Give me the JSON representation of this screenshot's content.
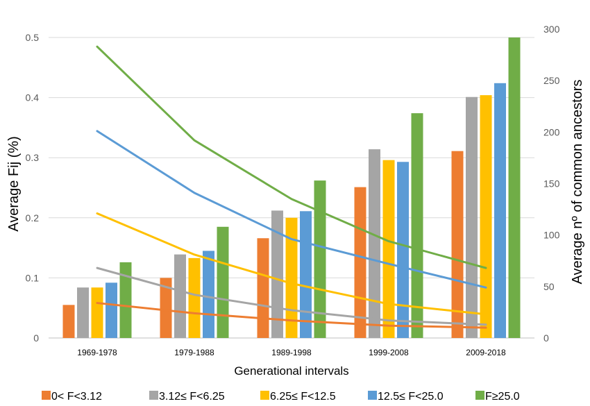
{
  "chart_data": {
    "type": "bar",
    "categories": [
      "1969-1978",
      "1979-1988",
      "1989-1998",
      "1999-2008",
      "2009-2018"
    ],
    "xlabel": "Generational intervals",
    "ylabel": "Average Fij (%)",
    "y2label": "Average nº of common ancestors",
    "ylim": [
      0,
      0.5
    ],
    "yticks": [
      "0",
      "0.1",
      "0.2",
      "0.3",
      "0.4",
      "0.5"
    ],
    "y2lim": [
      0,
      300
    ],
    "y2ticks": [
      "0",
      "50",
      "100",
      "150",
      "200",
      "250",
      "300"
    ],
    "grid": true,
    "legend_position": "bottom",
    "series": [
      {
        "name": "0< F<3.12",
        "color": "#ED7D31",
        "values": [
          0.055,
          0.1,
          0.166,
          0.251,
          0.311
        ],
        "line_values": [
          34,
          24,
          17,
          12,
          10
        ]
      },
      {
        "name": "3.12≤ F<6.25",
        "color": "#A5A5A5",
        "values": [
          0.084,
          0.139,
          0.212,
          0.314,
          0.401
        ],
        "line_values": [
          68,
          42,
          27,
          17,
          13
        ]
      },
      {
        "name": "6.25≤ F<12.5",
        "color": "#FFC000",
        "values": [
          0.084,
          0.133,
          0.2,
          0.296,
          0.404
        ],
        "line_values": [
          121,
          81,
          53,
          33,
          23
        ]
      },
      {
        "name": "12.5≤ F<25.0",
        "color": "#5B9BD5",
        "values": [
          0.092,
          0.145,
          0.211,
          0.293,
          0.424
        ],
        "line_values": [
          201,
          141,
          96,
          72,
          49
        ]
      },
      {
        "name": "F≥25.0",
        "color": "#70AD47",
        "values": [
          0.126,
          0.185,
          0.262,
          0.374,
          0.5
        ],
        "line_values": [
          283,
          192,
          135,
          94,
          68
        ]
      }
    ]
  }
}
